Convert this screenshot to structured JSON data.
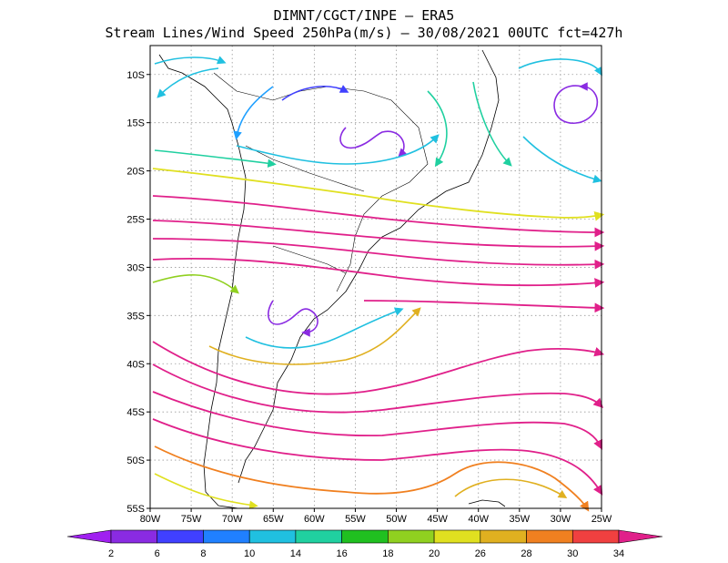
{
  "header": {
    "line1": "DIMNT/CGCT/INPE –  ERA5",
    "line2": "Stream Lines/Wind Speed 250hPa(m/s) –  30/08/2021 00UTC fct=427h"
  },
  "map": {
    "lon_range": [
      -80,
      -25
    ],
    "lat_range": [
      -55,
      -7
    ],
    "grid": true,
    "lon_ticks": [
      "80W",
      "75W",
      "70W",
      "65W",
      "60W",
      "55W",
      "50W",
      "45W",
      "40W",
      "35W",
      "30W",
      "25W"
    ],
    "lat_ticks": [
      "10S",
      "15S",
      "20S",
      "25S",
      "30S",
      "35S",
      "40S",
      "45S",
      "50S",
      "55S"
    ]
  },
  "colorbar": {
    "labels": [
      "2",
      "6",
      "8",
      "10",
      "14",
      "16",
      "18",
      "20",
      "26",
      "28",
      "30",
      "34"
    ],
    "colors": [
      "#a020f0",
      "#8a2be2",
      "#4040ff",
      "#2080ff",
      "#20c0e0",
      "#20d0a0",
      "#20c020",
      "#90d020",
      "#e0e020",
      "#e0b020",
      "#f08020",
      "#f04040",
      "#e0208a"
    ]
  }
}
